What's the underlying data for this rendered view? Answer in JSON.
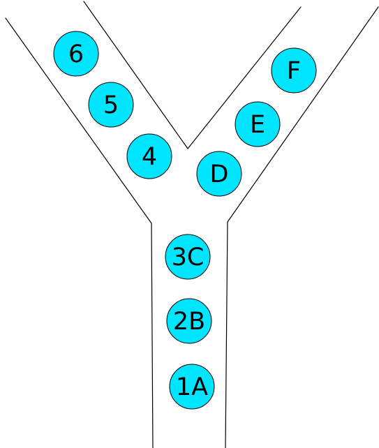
{
  "diagram": {
    "node_fill": "#00e5ff",
    "node_stroke": "#000000",
    "line_color": "#000000",
    "nodes": [
      {
        "id": "6",
        "label": "6"
      },
      {
        "id": "5",
        "label": "5"
      },
      {
        "id": "4",
        "label": "4"
      },
      {
        "id": "F",
        "label": "F"
      },
      {
        "id": "E",
        "label": "E"
      },
      {
        "id": "D",
        "label": "D"
      },
      {
        "id": "3C",
        "label": "3C"
      },
      {
        "id": "2B",
        "label": "2B"
      },
      {
        "id": "1A",
        "label": "1A"
      }
    ]
  }
}
